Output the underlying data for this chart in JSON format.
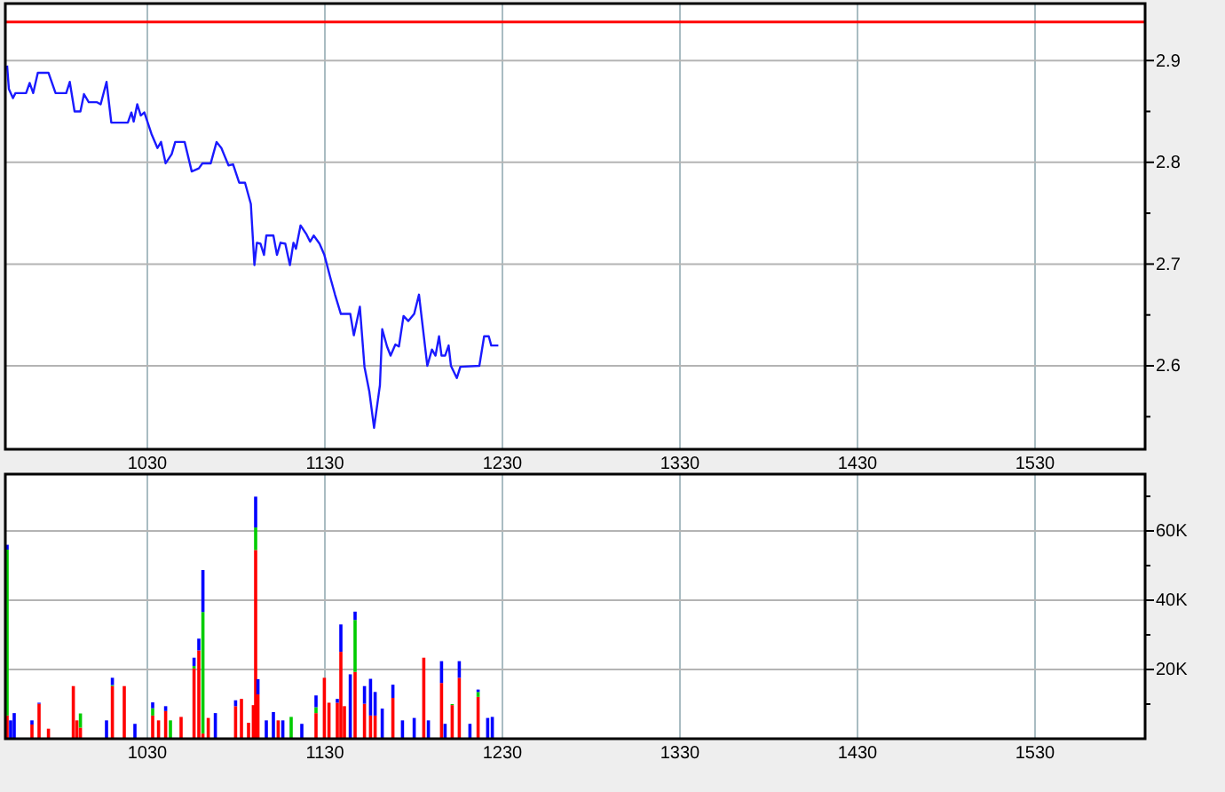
{
  "chart_data": [
    {
      "type": "line",
      "x": [
        951,
        952,
        954.3,
        955.7,
        961.7,
        963.7,
        965.7,
        968.3,
        974.3,
        978.3,
        984.3,
        986.3,
        989,
        992.3,
        994.3,
        997,
        1001.7,
        1003.7,
        1007,
        1009.7,
        1019,
        1021,
        1022.3,
        1024.3,
        1026.3,
        1028.3,
        1032.3,
        1035.7,
        1037.7,
        1040.3,
        1043.7,
        1045.7,
        1051,
        1055,
        1059,
        1061,
        1065.7,
        1069,
        1071.7,
        1075.7,
        1078.3,
        1081.7,
        1085,
        1088.3,
        1090.3,
        1091.7,
        1093.7,
        1095.7,
        1097,
        1101,
        1103,
        1105,
        1107.7,
        1110.3,
        1112.3,
        1113.7,
        1116.3,
        1119.7,
        1121.7,
        1123.7,
        1127,
        1129.7,
        1133,
        1135.7,
        1139,
        1144.3,
        1146.3,
        1149.7,
        1152.3,
        1155,
        1157.7,
        1161,
        1162.3,
        1165,
        1167,
        1169.7,
        1171.7,
        1174.3,
        1177,
        1180.3,
        1183,
        1185,
        1187.7,
        1190.3,
        1192.3,
        1194.3,
        1195.7,
        1197.7,
        1199.7,
        1201,
        1204.3,
        1206.3,
        1217,
        1219.7,
        1222.3,
        1223.7,
        1227.7
      ],
      "series": [
        {
          "color": "#1a1aff",
          "values": [
            2.895,
            2.872,
            2.863,
            2.868,
            2.868,
            2.878,
            2.868,
            2.888,
            2.888,
            2.868,
            2.868,
            2.879,
            2.85,
            2.85,
            2.867,
            2.859,
            2.859,
            2.857,
            2.879,
            2.839,
            2.839,
            2.849,
            2.84,
            2.857,
            2.846,
            2.849,
            2.828,
            2.814,
            2.82,
            2.799,
            2.808,
            2.82,
            2.82,
            2.791,
            2.794,
            2.799,
            2.799,
            2.82,
            2.814,
            2.797,
            2.798,
            2.78,
            2.78,
            2.759,
            2.699,
            2.721,
            2.72,
            2.709,
            2.728,
            2.728,
            2.709,
            2.721,
            2.72,
            2.699,
            2.721,
            2.715,
            2.738,
            2.729,
            2.722,
            2.728,
            2.72,
            2.709,
            2.687,
            2.67,
            2.651,
            2.651,
            2.63,
            2.658,
            2.599,
            2.575,
            2.539,
            2.581,
            2.636,
            2.619,
            2.61,
            2.621,
            2.619,
            2.649,
            2.644,
            2.651,
            2.67,
            2.64,
            2.6,
            2.616,
            2.61,
            2.629,
            2.61,
            2.61,
            2.62,
            2.6,
            2.588,
            2.599,
            2.6,
            2.629,
            2.629,
            2.62,
            2.62
          ]
        }
      ],
      "xlim": [
        950,
        1592
      ],
      "xticks": [
        1030,
        1130,
        1230,
        1330,
        1430,
        1530
      ],
      "ylim": [
        2.518,
        2.956
      ],
      "yticks": [
        {
          "value": 2.55,
          "label": null
        },
        {
          "value": 2.6,
          "label": "2.6"
        },
        {
          "value": 2.65,
          "label": null
        },
        {
          "value": 2.7,
          "label": "2.7"
        },
        {
          "value": 2.75,
          "label": null
        },
        {
          "value": 2.8,
          "label": "2.8"
        },
        {
          "value": 2.85,
          "label": null
        },
        {
          "value": 2.9,
          "label": "2.9"
        }
      ],
      "ref_lines": [
        {
          "axis": "y",
          "value": 2.938,
          "color": "#ff0000"
        }
      ],
      "grid": true,
      "marker": "none",
      "line_style": "solid"
    },
    {
      "type": "bar",
      "stacked": true,
      "x": [
        951,
        953,
        955,
        965,
        969,
        974.3,
        988.3,
        990.3,
        992.3,
        1007,
        1010.3,
        1017,
        1023,
        1033,
        1036.3,
        1040.3,
        1043,
        1049,
        1056.3,
        1059,
        1061.3,
        1064.3,
        1068.3,
        1079.7,
        1083,
        1087,
        1089.7,
        1091,
        1092.3,
        1097,
        1101,
        1103.7,
        1106.3,
        1111,
        1117,
        1125,
        1129.7,
        1132.3,
        1137,
        1139,
        1141,
        1144.3,
        1147,
        1152.3,
        1155.7,
        1158.3,
        1162.3,
        1168.3,
        1173.7,
        1180.3,
        1185.7,
        1188.3,
        1195.7,
        1197.7,
        1201.7,
        1205.7,
        1211.7,
        1216.3,
        1221.7,
        1224.3
      ],
      "series": [
        {
          "color": "#ff0000",
          "values": [
            6700,
            0,
            0,
            4100,
            10100,
            2900,
            15200,
            5300,
            3200,
            0,
            15200,
            15200,
            0,
            6700,
            5300,
            8000,
            0,
            6300,
            20300,
            25500,
            1500,
            6000,
            0,
            9400,
            11500,
            4600,
            9700,
            54500,
            12800,
            0,
            0,
            5300,
            0,
            0,
            0,
            7400,
            17600,
            10400,
            10400,
            25100,
            9400,
            0,
            19300,
            10100,
            6700,
            6700,
            0,
            11800,
            0,
            0,
            23400,
            0,
            16100,
            0,
            9700,
            17600,
            0,
            12100,
            0,
            0
          ]
        },
        {
          "color": "#00cc00",
          "values": [
            47900,
            0,
            0,
            0,
            0,
            0,
            0,
            0,
            4100,
            0,
            300,
            0,
            0,
            2100,
            0,
            0,
            5300,
            0,
            700,
            0,
            35100,
            0,
            0,
            0,
            0,
            0,
            0,
            6500,
            0,
            0,
            0,
            0,
            0,
            6300,
            0,
            1700,
            0,
            0,
            0,
            0,
            0,
            0,
            15000,
            0,
            0,
            0,
            0,
            0,
            0,
            0,
            0,
            0,
            0,
            0,
            300,
            0,
            0,
            1400,
            0,
            0
          ]
        },
        {
          "color": "#0000ff",
          "values": [
            1400,
            5300,
            7400,
            1200,
            300,
            0,
            0,
            0,
            0,
            5300,
            2100,
            0,
            4300,
            1700,
            0,
            1400,
            0,
            0,
            2400,
            3400,
            12100,
            0,
            7400,
            1700,
            0,
            0,
            0,
            8900,
            4400,
            5300,
            7700,
            0,
            5300,
            0,
            4300,
            3400,
            0,
            0,
            1100,
            7900,
            0,
            18600,
            2400,
            5100,
            10600,
            6800,
            8700,
            3800,
            5300,
            6000,
            0,
            5300,
            6300,
            4300,
            0,
            4800,
            4300,
            700,
            6000,
            6300
          ]
        }
      ],
      "xlim": [
        950,
        1592
      ],
      "xticks": [
        1030,
        1130,
        1230,
        1330,
        1430,
        1530
      ],
      "ylim": [
        0,
        76400
      ],
      "yticks": [
        {
          "value": 10000,
          "label": null
        },
        {
          "value": 20000,
          "label": "20K"
        },
        {
          "value": 30000,
          "label": null
        },
        {
          "value": 40000,
          "label": "40K"
        },
        {
          "value": 50000,
          "label": null
        },
        {
          "value": 60000,
          "label": "60K"
        },
        {
          "value": 70000,
          "label": null
        }
      ],
      "grid": true
    }
  ]
}
